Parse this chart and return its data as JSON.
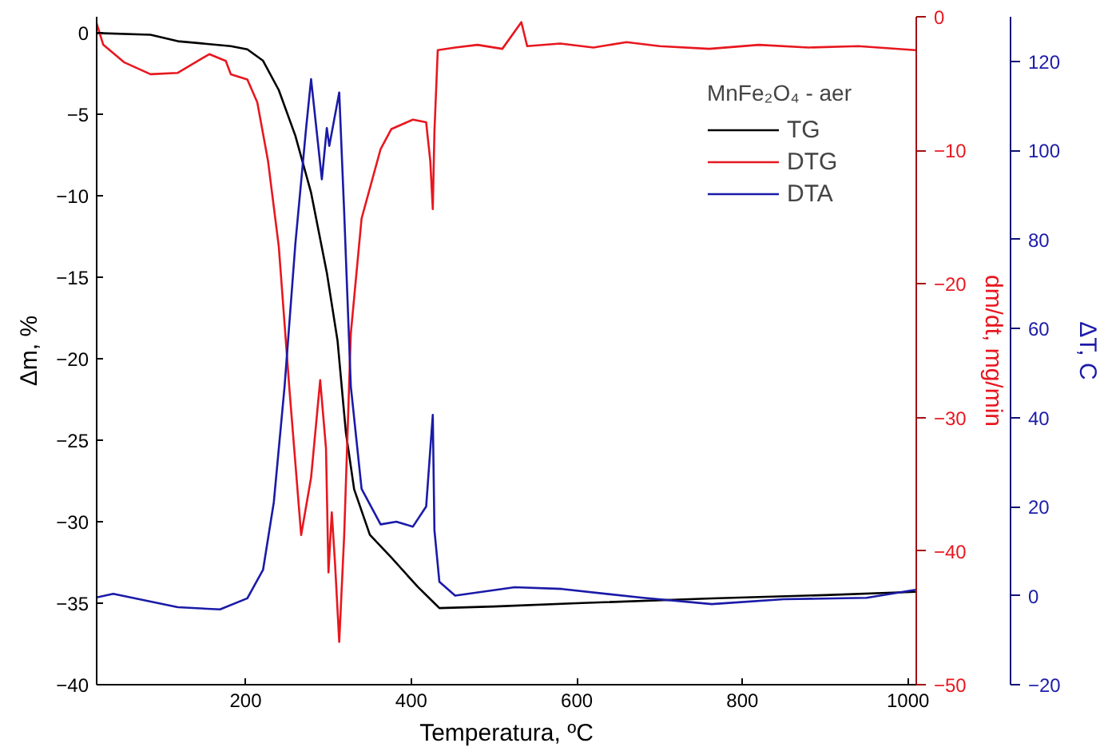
{
  "chart_data": {
    "type": "line",
    "xlabel": "Temperatura, ºC",
    "ylabel": "Δm, %",
    "y2label": "dm/dt, mg/min",
    "y3label": "ΔT, C",
    "legend_title": "MnFe₂O₄ - aer",
    "legend": "top right",
    "grid": false,
    "xlim": [
      20,
      1010
    ],
    "xticks": [
      200,
      400,
      600,
      800,
      1000
    ],
    "ylim": [
      -40,
      1
    ],
    "yticks": [
      -40,
      -35,
      -30,
      -25,
      -20,
      -15,
      -10,
      -5,
      0
    ],
    "y2lim": [
      -50,
      0
    ],
    "y2ticks": [
      -50,
      -40,
      -30,
      -20,
      -10,
      0
    ],
    "y3lim": [
      -20,
      130
    ],
    "y3ticks": [
      -20,
      0,
      20,
      40,
      60,
      80,
      100,
      120
    ],
    "series": [
      {
        "name": "TG",
        "color": "#000000",
        "x": [
          20,
          85,
          118,
          182,
          202,
          221,
          240,
          260,
          279,
          298,
          311,
          321,
          331,
          350,
          376,
          408,
          428,
          434,
          500,
          600,
          763,
          900,
          1009
        ],
        "values": [
          0,
          -0.1,
          -0.5,
          -0.8,
          -1.0,
          -1.7,
          -3.5,
          -6.3,
          -9.8,
          -14.7,
          -18.9,
          -24.5,
          -28,
          -30.8,
          -32.2,
          -34,
          -35,
          -35.3,
          -35.2,
          -35,
          -34.7,
          -34.5,
          -34.3
        ]
      },
      {
        "name": "DTG",
        "color": "#e8171f",
        "axis": "y2",
        "x": [
          20,
          28,
          53,
          85,
          118,
          156,
          176,
          182,
          202,
          214,
          227,
          240,
          253,
          267,
          279,
          290,
          297,
          300,
          304,
          308,
          313,
          319,
          327,
          340,
          363,
          376,
          402,
          418,
          423,
          426,
          428,
          432,
          453,
          480,
          510,
          533,
          540,
          580,
          620,
          660,
          700,
          760,
          820,
          880,
          940,
          1009
        ],
        "values": [
          -0.5,
          -2.1,
          -3.4,
          -4.3,
          -4.2,
          -2.8,
          -3.3,
          -4.3,
          -4.7,
          -6.4,
          -10.8,
          -17.2,
          -28,
          -38.8,
          -34.5,
          -27.2,
          -32.3,
          -41.6,
          -37.1,
          -41,
          -46.8,
          -38.8,
          -23.7,
          -15.1,
          -9.9,
          -8.4,
          -7.7,
          -7.9,
          -10.8,
          -14.4,
          -8.6,
          -2.5,
          -2.3,
          -2.1,
          -2.4,
          -0.4,
          -2.2,
          -2.0,
          -2.3,
          -1.9,
          -2.2,
          -2.4,
          -2.1,
          -2.3,
          -2.2,
          -2.5
        ]
      },
      {
        "name": "DTA",
        "color": "#1a1aa8",
        "axis": "y3",
        "x": [
          20,
          40,
          118,
          169,
          202,
          221,
          234,
          247,
          260,
          273,
          279,
          292,
          298,
          301,
          313,
          319,
          327,
          340,
          363,
          382,
          402,
          418,
          426,
          428,
          434,
          453,
          525,
          582,
          680,
          763,
          850,
          950,
          1009
        ],
        "values": [
          -0.4,
          0.4,
          -2.6,
          -3.1,
          -0.6,
          5.8,
          21,
          47,
          79,
          105,
          116,
          93.5,
          105,
          101,
          113,
          86,
          47,
          24,
          16,
          16.6,
          15.5,
          20,
          40.6,
          14.7,
          3.1,
          0,
          1.9,
          1.5,
          -0.5,
          -1.9,
          -0.8,
          -0.5,
          1.3
        ]
      }
    ]
  }
}
